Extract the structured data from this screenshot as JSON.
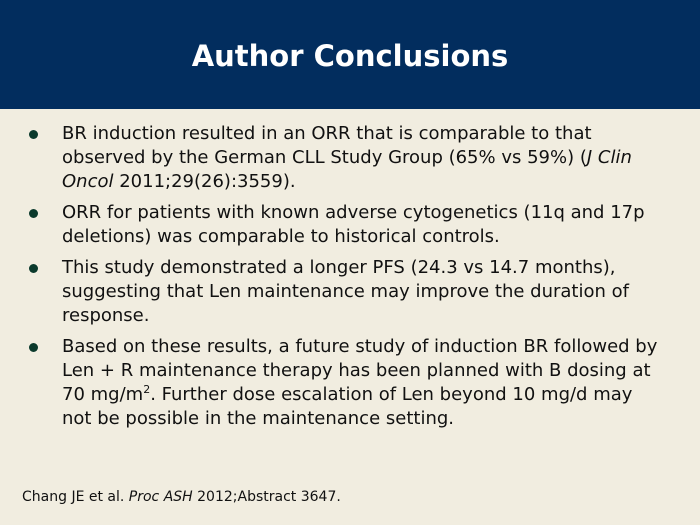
{
  "header": {
    "title": "Author Conclusions"
  },
  "bullets": [
    [
      "BR induction resulted in an ORR that is comparable to that observed by the German CLL Study Group (65% vs 59%) (",
      {
        "italic": "J Clin Oncol"
      },
      " 2011;29(26):3559)."
    ],
    [
      "ORR for patients with known adverse cytogenetics (11q and 17p deletions) was comparable to historical controls."
    ],
    [
      "This study demonstrated a longer PFS (24.3 vs 14.7 months), suggesting that Len maintenance may improve the duration of response."
    ],
    [
      "Based on these results, a future study of induction BR followed by Len + R maintenance therapy has been planned with B dosing at 70 mg/m",
      {
        "superscript": "2"
      },
      ". Further dose escalation of Len beyond 10 mg/d may not be possible in the maintenance setting."
    ]
  ],
  "footer": [
    "Chang JE et al. ",
    {
      "italic": "Proc ASH"
    },
    " 2012;Abstract 3647."
  ]
}
